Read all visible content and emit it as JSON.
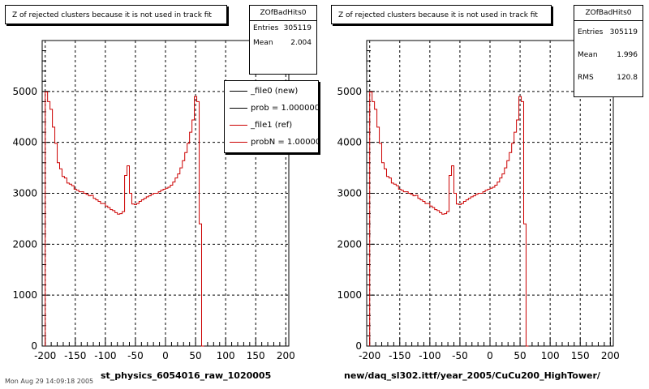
{
  "panels": [
    {
      "title": "Z of rejected clusters  because it is not used in track fit",
      "stats": {
        "name": "ZOfBadHits0",
        "rows": [
          {
            "label": "Entries",
            "value": "305119"
          },
          {
            "label": "Mean",
            "value": "2.004"
          }
        ]
      },
      "legend": [
        {
          "label": "_file0 (new)",
          "color": "#000000"
        },
        {
          "label": "prob = 1.000000",
          "color": "#000000"
        },
        {
          "label": "_file1 (ref)",
          "color": "#cc0000"
        },
        {
          "label": "probN = 1.000000",
          "color": "#cc0000"
        }
      ],
      "caption": "st_physics_6054016_raw_1020005"
    },
    {
      "title": "Z of rejected clusters  because it is not used in track fit",
      "stats": {
        "name": "ZOfBadHits0",
        "rows": [
          {
            "label": "Entries",
            "value": "305119"
          },
          {
            "label": "Mean",
            "value": "1.996"
          },
          {
            "label": "RMS",
            "value": "120.8"
          }
        ]
      },
      "caption": "new/daq_sl302.ittf/year_2005/CuCu200_HighTower/"
    }
  ],
  "footer": "Mon Aug 29 14:09:18 2005",
  "chart_data": [
    {
      "type": "line",
      "xlabel": "",
      "ylabel": "",
      "xlim": [
        -205,
        205
      ],
      "ylim": [
        0,
        6000
      ],
      "grid": true,
      "xticks": [
        "-200",
        "-150",
        "-100",
        "-50",
        "0",
        "50",
        "100",
        "150",
        "200"
      ],
      "yticks": [
        "0",
        "1000",
        "2000",
        "3000",
        "4000",
        "5000"
      ],
      "series": [
        {
          "name": "_file1 (ref)",
          "color": "#cc0000",
          "bin_width": 4,
          "x_start": -200,
          "values": [
            4990,
            4800,
            4650,
            4300,
            3980,
            3600,
            3480,
            3330,
            3300,
            3200,
            3180,
            3150,
            3080,
            3060,
            3030,
            3030,
            3000,
            2980,
            2950,
            2960,
            2900,
            2870,
            2840,
            2800,
            2800,
            2750,
            2720,
            2680,
            2660,
            2620,
            2590,
            2600,
            2640,
            3350,
            3540,
            3000,
            2790,
            2780,
            2800,
            2840,
            2870,
            2900,
            2930,
            2950,
            2980,
            3000,
            3000,
            3030,
            3060,
            3080,
            3100,
            3120,
            3160,
            3220,
            3300,
            3380,
            3500,
            3640,
            3800,
            3980,
            4200,
            4440,
            4900,
            4800,
            2400,
            0
          ]
        }
      ]
    },
    {
      "type": "line",
      "xlabel": "",
      "ylabel": "",
      "xlim": [
        -205,
        205
      ],
      "ylim": [
        0,
        6000
      ],
      "grid": true,
      "xticks": [
        "-200",
        "-150",
        "-100",
        "-50",
        "0",
        "50",
        "100",
        "150",
        "200"
      ],
      "yticks": [
        "0",
        "1000",
        "2000",
        "3000",
        "4000",
        "5000"
      ],
      "series": [
        {
          "name": "",
          "color": "#cc0000",
          "bin_width": 4,
          "x_start": -200,
          "values": [
            4990,
            4800,
            4650,
            4300,
            3980,
            3600,
            3480,
            3330,
            3300,
            3200,
            3180,
            3150,
            3080,
            3060,
            3030,
            3030,
            3000,
            2980,
            2950,
            2960,
            2900,
            2870,
            2840,
            2800,
            2800,
            2750,
            2720,
            2680,
            2660,
            2620,
            2590,
            2600,
            2640,
            3350,
            3540,
            3000,
            2790,
            2780,
            2800,
            2840,
            2870,
            2900,
            2930,
            2950,
            2980,
            3000,
            3000,
            3030,
            3060,
            3080,
            3100,
            3120,
            3160,
            3220,
            3300,
            3380,
            3500,
            3640,
            3800,
            3980,
            4200,
            4440,
            4900,
            4800,
            2400,
            0
          ]
        }
      ]
    }
  ]
}
